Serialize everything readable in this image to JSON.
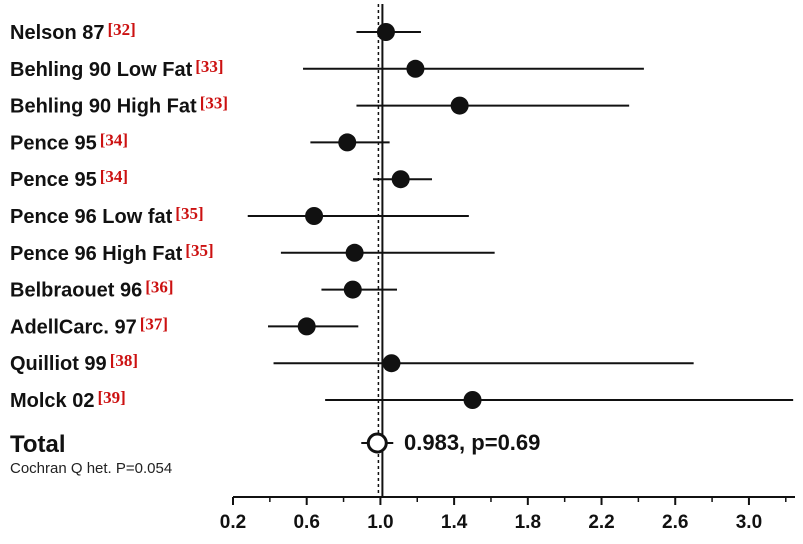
{
  "colors": {
    "ink": "#111111",
    "reference": "#cc1111"
  },
  "chart_data": {
    "type": "forest",
    "xlim": [
      0.2,
      3.25
    ],
    "reference_line": 1.0,
    "xticks": [
      "0.2",
      "0.6",
      "1.0",
      "1.4",
      "1.8",
      "2.2",
      "2.6",
      "3.0"
    ],
    "xtick_values": [
      0.2,
      0.6,
      1.0,
      1.4,
      1.8,
      2.2,
      2.6,
      3.0
    ],
    "studies": [
      {
        "name": "Nelson 87",
        "ref": "[32]",
        "estimate": 1.03,
        "ci": [
          0.87,
          1.22
        ]
      },
      {
        "name": "Behling 90 Low Fat",
        "ref": "[33]",
        "estimate": 1.19,
        "ci": [
          0.58,
          2.43
        ]
      },
      {
        "name": "Behling 90 High Fat",
        "ref": "[33]",
        "estimate": 1.43,
        "ci": [
          0.87,
          2.35
        ]
      },
      {
        "name": "Pence 95",
        "ref": "[34]",
        "estimate": 0.82,
        "ci": [
          0.62,
          1.05
        ]
      },
      {
        "name": "Pence 95",
        "ref": "[34]",
        "estimate": 1.11,
        "ci": [
          0.96,
          1.28
        ]
      },
      {
        "name": "Pence 96 Low fat",
        "ref": "[35]",
        "estimate": 0.64,
        "ci": [
          0.28,
          1.48
        ]
      },
      {
        "name": "Pence 96  High Fat",
        "ref": "[35]",
        "estimate": 0.86,
        "ci": [
          0.46,
          1.62
        ]
      },
      {
        "name": "Belbraouet 96",
        "ref": "[36]",
        "estimate": 0.85,
        "ci": [
          0.68,
          1.09
        ]
      },
      {
        "name": "AdellCarc. 97",
        "ref": "[37]",
        "estimate": 0.6,
        "ci": [
          0.39,
          0.88
        ]
      },
      {
        "name": "Quilliot 99",
        "ref": "[38]",
        "estimate": 1.06,
        "ci": [
          0.42,
          2.7
        ]
      },
      {
        "name": "Molck 02",
        "ref": "[39]",
        "estimate": 1.5,
        "ci": [
          0.7,
          3.24
        ]
      }
    ],
    "total": {
      "label": "Total",
      "estimate": 0.983,
      "summary_text": "0.983, p=0.69",
      "heterogeneity": "Cochran Q het. P=0.054"
    }
  }
}
